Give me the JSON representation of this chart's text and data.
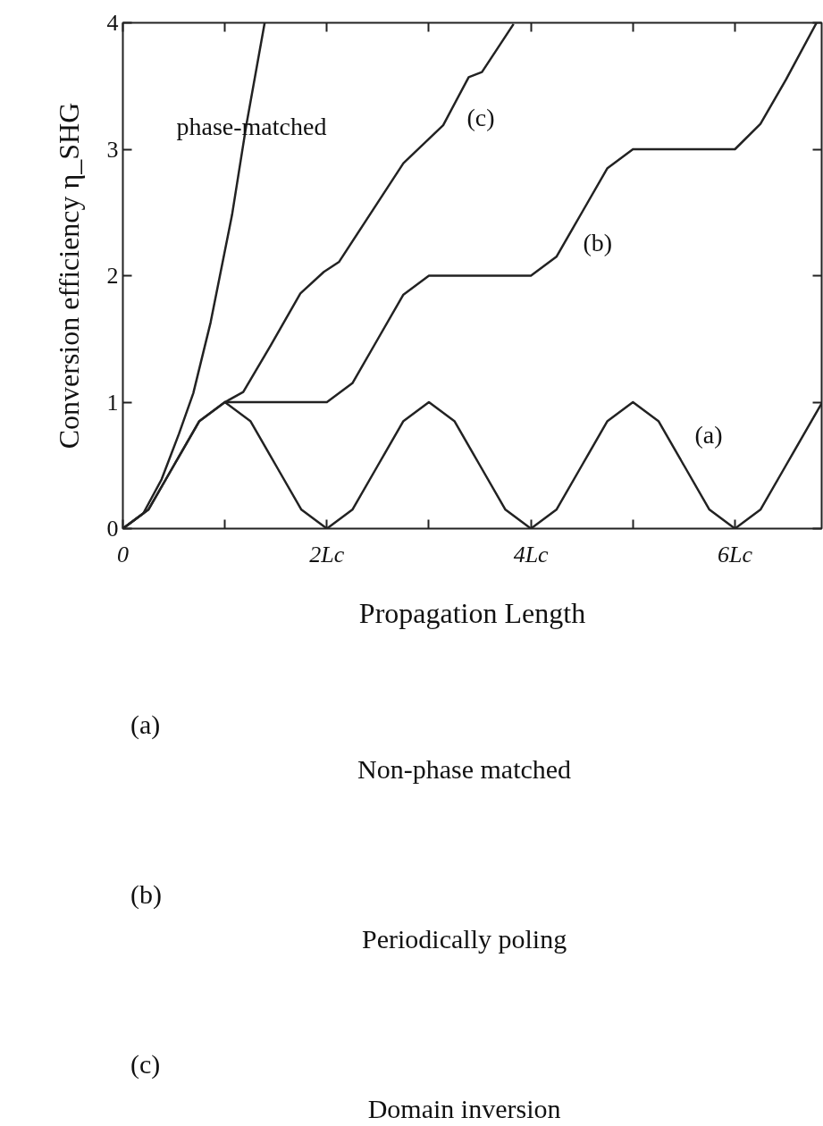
{
  "chart_data": {
    "type": "line",
    "xlabel": "Propagation Length",
    "ylabel": "Conversion efficiency η_SHG",
    "xlim": [
      0,
      6.85
    ],
    "ylim": [
      0,
      4
    ],
    "xticks": [
      0,
      {
        "value": 1,
        "label": null
      },
      {
        "value": 2,
        "label": "2Lc"
      },
      {
        "value": 3,
        "label": null
      },
      {
        "value": 4,
        "label": "4Lc"
      },
      {
        "value": 5,
        "label": null
      },
      {
        "value": 6,
        "label": "6Lc"
      }
    ],
    "yticks": [
      0,
      1,
      2,
      3,
      4
    ],
    "grid": false,
    "marker": "none",
    "line_style": "solid",
    "series": [
      {
        "color": "#222222",
        "x": [
          0,
          0.2,
          0.38,
          0.55,
          0.69,
          0.86,
          1.07,
          1.21,
          1.39
        ],
        "values": [
          0,
          0.12,
          0.39,
          0.75,
          1.07,
          1.63,
          2.48,
          3.19,
          4.0
        ]
      },
      {
        "color": "#222222",
        "x": [
          0,
          0.25,
          0.5,
          0.75,
          1,
          1.25,
          1.5,
          1.75,
          2,
          2.25,
          2.5,
          2.75,
          3,
          3.25,
          3.5,
          3.75,
          4,
          4.25,
          4.5,
          4.75,
          5,
          5.25,
          5.5,
          5.75,
          6,
          6.25,
          6.5,
          6.75,
          6.85
        ],
        "values": [
          0,
          0.15,
          0.5,
          0.85,
          1,
          0.85,
          0.5,
          0.15,
          0,
          0.15,
          0.5,
          0.85,
          1,
          0.85,
          0.5,
          0.15,
          0,
          0.15,
          0.5,
          0.85,
          1,
          0.85,
          0.5,
          0.15,
          0,
          0.15,
          0.5,
          0.85,
          0.99
        ]
      },
      {
        "color": "#222222",
        "x": [
          0,
          0.25,
          0.5,
          0.75,
          1,
          2,
          2.25,
          2.5,
          2.75,
          3,
          4,
          4.25,
          4.5,
          4.75,
          5,
          6,
          6.25,
          6.5,
          6.8
        ],
        "values": [
          0,
          0.15,
          0.5,
          0.85,
          1,
          1,
          1.15,
          1.5,
          1.85,
          2,
          2,
          2.15,
          2.5,
          2.85,
          3,
          3,
          3.2,
          3.55,
          4
        ]
      },
      {
        "color": "#222222",
        "x": [
          1,
          1.18,
          1.45,
          1.74,
          1.97,
          2.12,
          2.37,
          2.75,
          3.14,
          3.39,
          3.52,
          3.83
        ],
        "values": [
          1,
          1.08,
          1.45,
          1.86,
          2.03,
          2.11,
          2.42,
          2.89,
          3.19,
          3.57,
          3.61,
          3.99
        ]
      }
    ],
    "annotations": [
      "phase-matched",
      "(c)",
      "(b)",
      "(a)",
      "(a)",
      "Non-phase matched",
      "(b)",
      "Periodically poling",
      "(c)",
      "Domain inversion"
    ]
  }
}
